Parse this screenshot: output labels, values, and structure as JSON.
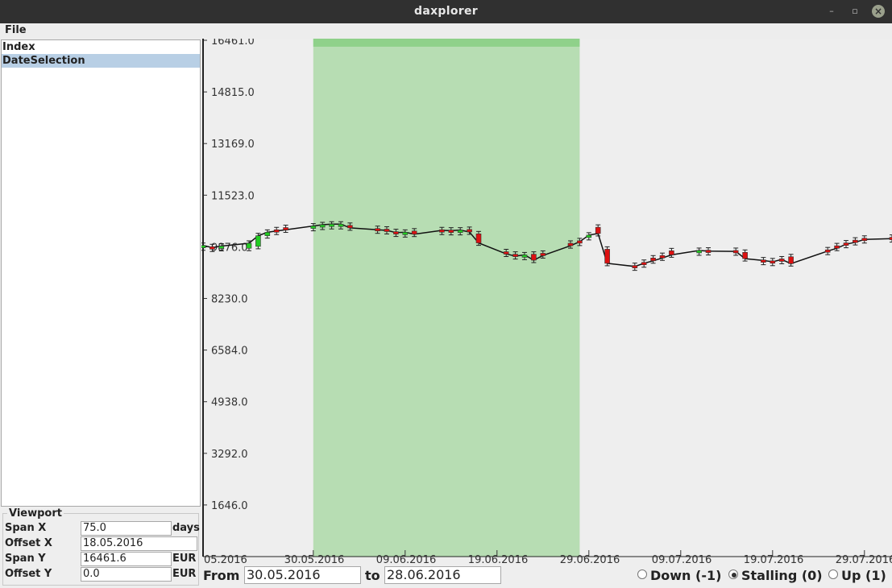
{
  "window": {
    "title": "daxplorer",
    "minimize_glyph": "–",
    "maximize_glyph": "▫",
    "close_glyph": "×"
  },
  "menu": {
    "file": "File"
  },
  "tree": {
    "items": [
      "Index",
      "DateSelection"
    ],
    "selected": "DateSelection"
  },
  "viewport": {
    "legend": "Viewport",
    "span_x": {
      "label": "Span X",
      "value": "75.0",
      "unit": "days"
    },
    "offset_x": {
      "label": "Offset X",
      "value": "18.05.2016"
    },
    "span_y": {
      "label": "Span Y",
      "value": "16461.6",
      "unit": "EUR"
    },
    "offset_y": {
      "label": "Offset Y",
      "value": "0.0",
      "unit": "EUR"
    }
  },
  "range": {
    "from_label": "From",
    "from_value": "30.05.2016",
    "to_label": "to",
    "to_value": "28.06.2016"
  },
  "trend": {
    "options": [
      {
        "label": "Down (-1)",
        "selected": false
      },
      {
        "label": "Stalling (0)",
        "selected": true
      },
      {
        "label": "Up (1)",
        "selected": false
      }
    ]
  },
  "colors": {
    "selection": "#b7ddb3",
    "selection_top": "#8fd18a",
    "up": "#22cc22",
    "down": "#dd1111",
    "line": "#111111"
  },
  "chart_data": {
    "type": "line",
    "x_start_label": "05.2016",
    "y_ticks": [
      "1646.0",
      "3292.0",
      "4938.0",
      "6584.0",
      "8230.0",
      "9876.0",
      "11523.0",
      "13169.0",
      "14815.0",
      "16461.0"
    ],
    "x_ticks": [
      "30.05.2016",
      "09.06.2016",
      "19.06.2016",
      "29.06.2016",
      "09.07.2016",
      "19.07.2016",
      "29.07.2016"
    ],
    "ylim": [
      0,
      16461.6
    ],
    "xlim": [
      "18.05.2016",
      "01.08.2016"
    ],
    "selection": [
      "30.05.2016",
      "28.06.2016"
    ],
    "points": [
      {
        "d": "18.05.2016",
        "o": 9900,
        "c": 9920
      },
      {
        "d": "19.05.2016",
        "o": 9880,
        "c": 9850
      },
      {
        "d": "20.05.2016",
        "o": 9870,
        "c": 9900
      },
      {
        "d": "23.05.2016",
        "o": 9830,
        "c": 9990
      },
      {
        "d": "24.05.2016",
        "o": 9890,
        "c": 10230
      },
      {
        "d": "25.05.2016",
        "o": 10230,
        "c": 10340
      },
      {
        "d": "26.05.2016",
        "o": 10420,
        "c": 10380
      },
      {
        "d": "27.05.2016",
        "o": 10490,
        "c": 10420
      },
      {
        "d": "30.05.2016",
        "o": 10520,
        "c": 10540
      },
      {
        "d": "31.05.2016",
        "o": 10560,
        "c": 10580
      },
      {
        "d": "01.06.2016",
        "o": 10590,
        "c": 10600
      },
      {
        "d": "02.06.2016",
        "o": 10570,
        "c": 10600
      },
      {
        "d": "03.06.2016",
        "o": 10560,
        "c": 10480
      },
      {
        "d": "06.06.2016",
        "o": 10460,
        "c": 10420
      },
      {
        "d": "07.06.2016",
        "o": 10440,
        "c": 10400
      },
      {
        "d": "08.06.2016",
        "o": 10360,
        "c": 10330
      },
      {
        "d": "09.06.2016",
        "o": 10290,
        "c": 10340
      },
      {
        "d": "10.06.2016",
        "o": 10380,
        "c": 10280
      },
      {
        "d": "13.06.2016",
        "o": 10420,
        "c": 10400
      },
      {
        "d": "14.06.2016",
        "o": 10410,
        "c": 10390
      },
      {
        "d": "15.06.2016",
        "o": 10390,
        "c": 10410
      },
      {
        "d": "16.06.2016",
        "o": 10430,
        "c": 10350
      },
      {
        "d": "17.06.2016",
        "o": 10290,
        "c": 10000
      },
      {
        "d": "20.06.2016",
        "o": 9720,
        "c": 9650
      },
      {
        "d": "21.06.2016",
        "o": 9640,
        "c": 9580
      },
      {
        "d": "22.06.2016",
        "o": 9620,
        "c": 9620
      },
      {
        "d": "23.06.2016",
        "o": 9640,
        "c": 9450
      },
      {
        "d": "24.06.2016",
        "o": 9670,
        "c": 9600
      },
      {
        "d": "27.06.2016",
        "o": 9990,
        "c": 9910
      },
      {
        "d": "28.06.2016",
        "o": 10070,
        "c": 10040
      },
      {
        "d": "29.06.2016",
        "o": 10200,
        "c": 10250
      },
      {
        "d": "30.06.2016",
        "o": 10500,
        "c": 10300
      },
      {
        "d": "01.07.2016",
        "o": 9800,
        "c": 9350
      },
      {
        "d": "04.07.2016",
        "o": 9280,
        "c": 9250
      },
      {
        "d": "05.07.2016",
        "o": 9380,
        "c": 9350
      },
      {
        "d": "06.07.2016",
        "o": 9520,
        "c": 9430
      },
      {
        "d": "07.07.2016",
        "o": 9600,
        "c": 9520
      },
      {
        "d": "08.07.2016",
        "o": 9750,
        "c": 9620
      },
      {
        "d": "11.07.2016",
        "o": 9740,
        "c": 9760
      },
      {
        "d": "12.07.2016",
        "o": 9770,
        "c": 9740
      },
      {
        "d": "15.07.2016",
        "o": 9760,
        "c": 9730
      },
      {
        "d": "16.07.2016",
        "o": 9700,
        "c": 9500
      },
      {
        "d": "18.07.2016",
        "o": 9460,
        "c": 9440
      },
      {
        "d": "19.07.2016",
        "o": 9430,
        "c": 9400
      },
      {
        "d": "20.07.2016",
        "o": 9490,
        "c": 9470
      },
      {
        "d": "21.07.2016",
        "o": 9560,
        "c": 9340
      },
      {
        "d": "25.07.2016",
        "o": 9780,
        "c": 9740
      },
      {
        "d": "26.07.2016",
        "o": 9910,
        "c": 9830
      },
      {
        "d": "27.07.2016",
        "o": 10000,
        "c": 9960
      },
      {
        "d": "28.07.2016",
        "o": 10090,
        "c": 10020
      },
      {
        "d": "29.07.2016",
        "o": 10150,
        "c": 10110
      },
      {
        "d": "01.08.2016",
        "o": 10180,
        "c": 10140
      }
    ]
  }
}
